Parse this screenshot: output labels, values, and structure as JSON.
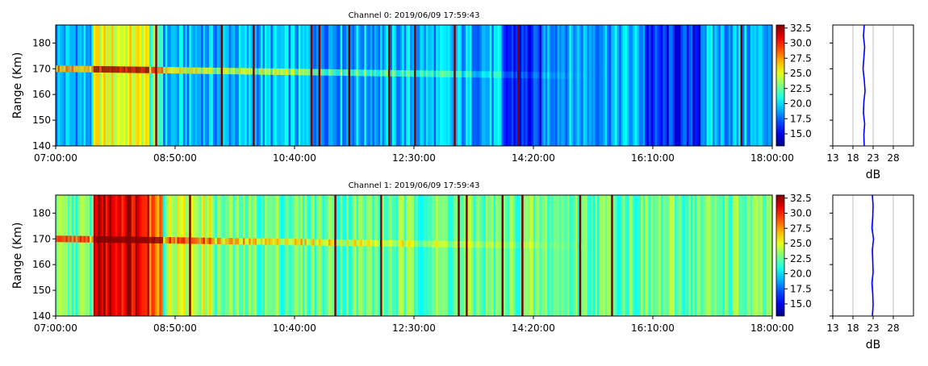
{
  "chart_data": [
    {
      "type": "heatmap",
      "title": "Channel 0: 2019/06/09 17:59:43",
      "ylabel": "Range (Km)",
      "xlabel": "",
      "xlim": [
        "07:00:00",
        "18:00:00"
      ],
      "xticks": [
        "07:00:00",
        "08:50:00",
        "10:40:00",
        "12:30:00",
        "14:20:00",
        "16:10:00",
        "18:00:00"
      ],
      "ylim": [
        140,
        187
      ],
      "yticks": [
        140,
        150,
        160,
        170,
        180
      ],
      "colorbar": {
        "min": 13,
        "max": 33,
        "ticks": [
          "15.0",
          "17.5",
          "20.0",
          "22.5",
          "25.0",
          "27.5",
          "30.0",
          "32.5"
        ],
        "colormap": "jet"
      },
      "baseline_db": 19,
      "echo_range_km": 170,
      "echo_strength_db": 29,
      "profile": {
        "xlabel": "dB",
        "xlim": [
          13,
          33
        ],
        "xticks": [
          13,
          18,
          23,
          28
        ],
        "grid": true,
        "color": "#0000ff",
        "values": [
          20.8,
          20.6,
          20.9,
          20.7,
          20.5,
          20.8,
          21.0,
          20.7,
          20.6,
          20.9,
          20.7,
          20.8
        ]
      }
    },
    {
      "type": "heatmap",
      "title": "Channel 1: 2019/06/09 17:59:43",
      "ylabel": "Range (Km)",
      "xlabel": "",
      "xlim": [
        "07:00:00",
        "18:00:00"
      ],
      "xticks": [
        "07:00:00",
        "08:50:00",
        "10:40:00",
        "12:30:00",
        "14:20:00",
        "16:10:00",
        "18:00:00"
      ],
      "ylim": [
        140,
        187
      ],
      "yticks": [
        140,
        150,
        160,
        170,
        180
      ],
      "colorbar": {
        "min": 13,
        "max": 33,
        "ticks": [
          "15.0",
          "17.5",
          "20.0",
          "22.5",
          "25.0",
          "27.5",
          "30.0",
          "32.5"
        ],
        "colormap": "jet"
      },
      "baseline_db": 22.5,
      "echo_range_km": 170,
      "echo_strength_db": 30,
      "profile": {
        "xlabel": "dB",
        "xlim": [
          13,
          33
        ],
        "xticks": [
          13,
          18,
          23,
          28
        ],
        "grid": true,
        "color": "#0000ff",
        "values": [
          22.8,
          23.0,
          22.9,
          22.7,
          23.1,
          22.8,
          22.9,
          23.0,
          22.7,
          22.9,
          23.0,
          22.8
        ]
      }
    }
  ]
}
